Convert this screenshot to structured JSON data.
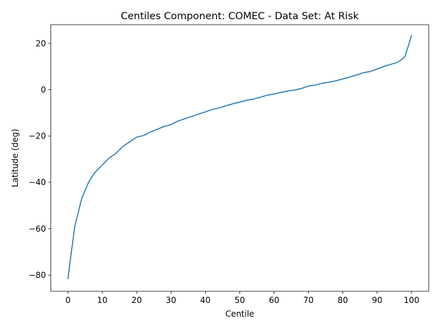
{
  "chart_data": {
    "type": "line",
    "title": "Centiles Component: COMEC - Data Set: At Risk",
    "xlabel": "Centile",
    "ylabel": "Latitude (deg)",
    "xlim": [
      -5,
      105
    ],
    "ylim": [
      -87,
      28
    ],
    "xticks": [
      0,
      10,
      20,
      30,
      40,
      50,
      60,
      70,
      80,
      90,
      100
    ],
    "yticks": [
      -80,
      -60,
      -40,
      -20,
      0,
      20
    ],
    "grid": false,
    "line_color": "#1f77b4",
    "series": [
      {
        "name": "",
        "x": [
          0,
          1,
          2,
          3,
          4,
          5,
          6,
          7,
          8,
          9,
          10,
          11,
          12,
          13,
          14,
          15,
          16,
          17,
          18,
          19,
          20,
          22,
          24,
          26,
          28,
          30,
          32,
          34,
          36,
          38,
          40,
          42,
          44,
          46,
          48,
          50,
          52,
          54,
          56,
          58,
          60,
          62,
          64,
          66,
          68,
          70,
          72,
          74,
          76,
          78,
          80,
          82,
          84,
          86,
          88,
          90,
          92,
          94,
          96,
          98,
          99,
          100
        ],
        "y": [
          -81.5,
          -70,
          -59,
          -53,
          -47,
          -43.5,
          -40,
          -37.5,
          -35.5,
          -34,
          -32.5,
          -31,
          -29.5,
          -28.5,
          -27.5,
          -26,
          -24.5,
          -23.5,
          -22.5,
          -21.5,
          -20.5,
          -19.8,
          -18.3,
          -17.1,
          -15.9,
          -15.1,
          -13.6,
          -12.6,
          -11.6,
          -10.6,
          -9.6,
          -8.6,
          -7.9,
          -7,
          -6.1,
          -5.4,
          -4.6,
          -4.1,
          -3.3,
          -2.4,
          -1.9,
          -1.2,
          -0.6,
          -0.2,
          0.5,
          1.5,
          2,
          2.7,
          3.2,
          3.8,
          4.6,
          5.4,
          6.3,
          7.3,
          7.8,
          8.9,
          10,
          10.9,
          11.8,
          14,
          18.5,
          23.3
        ]
      }
    ]
  }
}
